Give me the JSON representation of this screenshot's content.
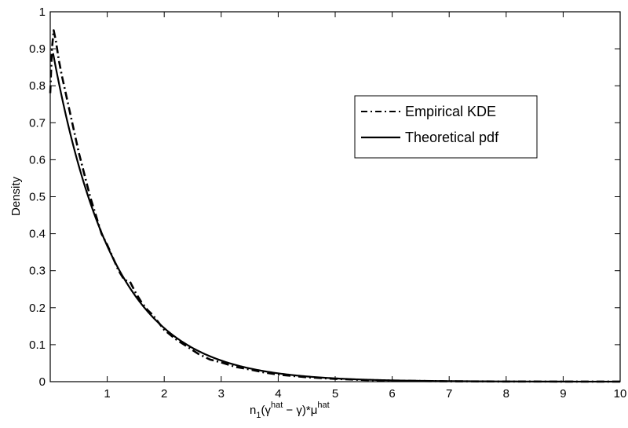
{
  "chart_data": {
    "type": "line",
    "title": "",
    "xlabel": {
      "base": "n",
      "sub": "1",
      "open": "(γ",
      "sup1": "hat",
      "middle": " − γ)*μ",
      "sup2": "hat"
    },
    "ylabel": "Density",
    "xlim": [
      0,
      10
    ],
    "ylim": [
      0,
      1
    ],
    "xticks": [
      0,
      1,
      2,
      3,
      4,
      5,
      6,
      7,
      8,
      9,
      10
    ],
    "xtick_labels": [
      "",
      "1",
      "2",
      "3",
      "4",
      "5",
      "6",
      "7",
      "8",
      "9",
      "10"
    ],
    "yticks": [
      0,
      0.1,
      0.2,
      0.3,
      0.4,
      0.5,
      0.6,
      0.7,
      0.8,
      0.9,
      1
    ],
    "ytick_labels": [
      "0",
      "0.1",
      "0.2",
      "0.3",
      "0.4",
      "0.5",
      "0.6",
      "0.7",
      "0.8",
      "0.9",
      "1"
    ],
    "grid": false,
    "legend_position": "top-right",
    "series": [
      {
        "name": "Empirical KDE",
        "style": "dash-dot",
        "color": "#000000",
        "x": [
          0.0,
          0.03,
          0.06,
          0.1,
          0.15,
          0.2,
          0.3,
          0.4,
          0.5,
          0.6,
          0.7,
          0.8,
          0.9,
          1.0,
          1.1,
          1.2,
          1.3,
          1.4,
          1.5,
          1.6,
          1.7,
          1.8,
          2.0,
          2.2,
          2.4,
          2.6,
          2.8,
          3.0,
          3.25,
          3.5,
          3.75,
          4.0,
          4.5,
          5.0,
          5.5,
          6.0,
          7.0,
          8.0,
          9.0,
          10.0
        ],
        "y": [
          0.78,
          0.9,
          0.95,
          0.92,
          0.87,
          0.83,
          0.76,
          0.69,
          0.62,
          0.56,
          0.5,
          0.45,
          0.4,
          0.37,
          0.335,
          0.3,
          0.275,
          0.27,
          0.24,
          0.215,
          0.195,
          0.18,
          0.14,
          0.115,
          0.095,
          0.075,
          0.06,
          0.052,
          0.04,
          0.033,
          0.025,
          0.019,
          0.012,
          0.0075,
          0.0045,
          0.0027,
          0.001,
          0.0004,
          0.0002,
          0.0001
        ]
      },
      {
        "name": "Theoretical pdf",
        "style": "solid",
        "color": "#000000",
        "function": "exponential",
        "rate": 0.93,
        "x_start": 0.05,
        "x_end": 10
      }
    ]
  }
}
